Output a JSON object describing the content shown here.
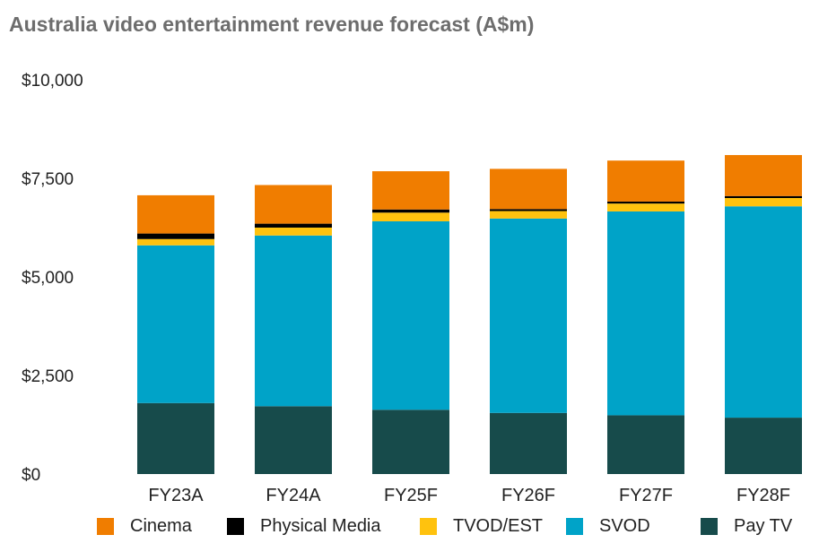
{
  "chart_data": {
    "type": "bar",
    "stacked": true,
    "title": "Australia video entertainment revenue forecast (A$m)",
    "categories": [
      "FY23A",
      "FY24A",
      "FY25F",
      "FY26F",
      "FY27F",
      "FY28F"
    ],
    "series": [
      {
        "name": "Pay TV",
        "color": "#174b4b",
        "values": [
          1800,
          1720,
          1630,
          1550,
          1490,
          1430
        ]
      },
      {
        "name": "SVOD",
        "color": "#00a3c8",
        "values": [
          4000,
          4330,
          4780,
          4930,
          5170,
          5360
        ]
      },
      {
        "name": "TVOD/EST",
        "color": "#ffc20e",
        "values": [
          160,
          200,
          220,
          190,
          200,
          210
        ]
      },
      {
        "name": "Physical Media",
        "color": "#000000",
        "values": [
          140,
          100,
          80,
          50,
          50,
          50
        ]
      },
      {
        "name": "Cinema",
        "color": "#f07d00",
        "values": [
          970,
          980,
          970,
          1020,
          1040,
          1040
        ]
      }
    ],
    "legend_order": [
      "Cinema",
      "Physical Media",
      "TVOD/EST",
      "SVOD",
      "Pay TV"
    ],
    "yticks": [
      {
        "value": 0,
        "label": "$0"
      },
      {
        "value": 2500,
        "label": "$2,500"
      },
      {
        "value": 5000,
        "label": "$5,000"
      },
      {
        "value": 7500,
        "label": "$7,500"
      },
      {
        "value": 10000,
        "label": "$10,000"
      }
    ],
    "ylim": [
      0,
      10000
    ],
    "xlabel": "",
    "ylabel": "",
    "grid": false,
    "legend_position": "bottom"
  }
}
